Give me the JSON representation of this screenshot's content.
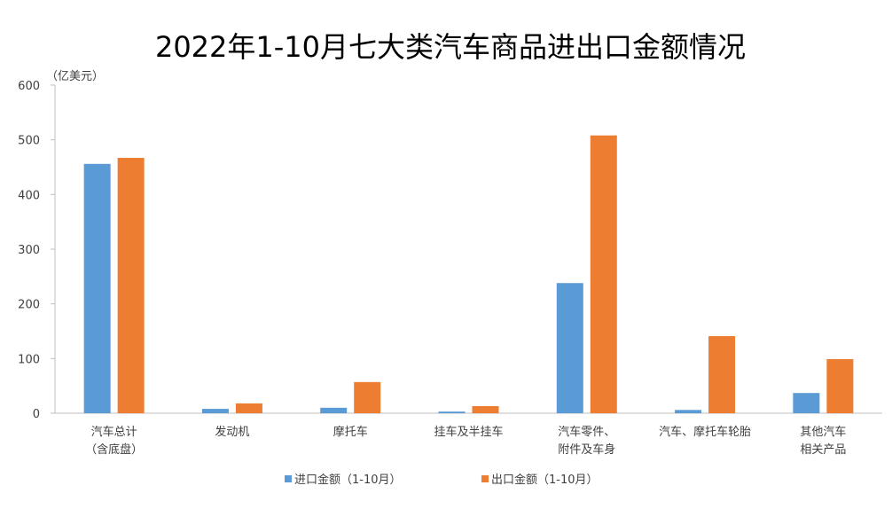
{
  "chart_data": {
    "type": "bar",
    "title": "2022年1-10月七大类汽车商品进出口金额情况",
    "unit_label": "（亿美元）",
    "ylim": [
      0,
      600
    ],
    "y_ticks": [
      0,
      100,
      200,
      300,
      400,
      500,
      600
    ],
    "categories": [
      [
        "汽车总计",
        "（含底盘）"
      ],
      [
        "发动机"
      ],
      [
        "摩托车"
      ],
      [
        "挂车及半挂车"
      ],
      [
        "汽车零件、",
        "附件及车身"
      ],
      [
        "汽车、摩托车轮胎"
      ],
      [
        "其他汽车",
        "相关产品"
      ]
    ],
    "series": [
      {
        "name": "进口金额（1-10月）",
        "color": "#5b9bd5",
        "values": [
          456,
          8,
          10,
          3,
          238,
          6,
          37
        ]
      },
      {
        "name": "出口金额（1-10月）",
        "color": "#ed7d31",
        "values": [
          467,
          18,
          57,
          13,
          508,
          141,
          99
        ]
      }
    ],
    "grid": false,
    "legend_position": "bottom"
  }
}
